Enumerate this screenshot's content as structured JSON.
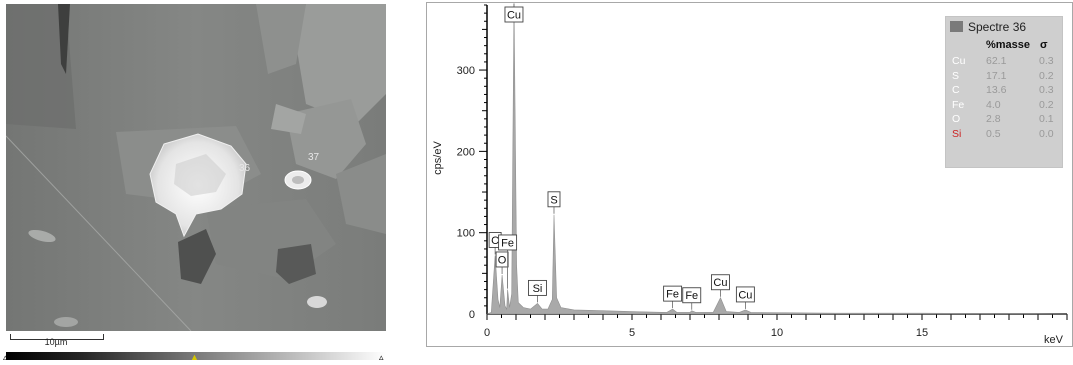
{
  "micrograph": {
    "spot_labels": [
      "36",
      "37"
    ],
    "scale_bar": "10µm"
  },
  "chart_data": {
    "type": "line",
    "xlabel": "keV",
    "ylabel": "cps/eV",
    "xlim": [
      0,
      20
    ],
    "ylim": [
      0,
      380
    ],
    "x_ticks": [
      0,
      5,
      10,
      15
    ],
    "y_ticks": [
      0,
      100,
      200,
      300
    ],
    "fill_color": "#a9a9a9",
    "spectrum": [
      [
        0.0,
        0
      ],
      [
        0.15,
        2
      ],
      [
        0.28,
        72
      ],
      [
        0.38,
        18
      ],
      [
        0.44,
        8
      ],
      [
        0.52,
        48
      ],
      [
        0.62,
        10
      ],
      [
        0.68,
        6
      ],
      [
        0.71,
        30
      ],
      [
        0.78,
        8
      ],
      [
        0.85,
        25
      ],
      [
        0.93,
        385
      ],
      [
        1.02,
        60
      ],
      [
        1.08,
        14
      ],
      [
        1.25,
        8
      ],
      [
        1.5,
        6
      ],
      [
        1.74,
        13
      ],
      [
        1.9,
        6
      ],
      [
        2.1,
        6
      ],
      [
        2.25,
        18
      ],
      [
        2.31,
        122
      ],
      [
        2.4,
        20
      ],
      [
        2.55,
        8
      ],
      [
        3.0,
        5
      ],
      [
        4.0,
        4
      ],
      [
        5.0,
        3
      ],
      [
        6.2,
        2
      ],
      [
        6.4,
        6
      ],
      [
        6.55,
        2
      ],
      [
        7.0,
        2
      ],
      [
        7.06,
        4
      ],
      [
        7.2,
        2
      ],
      [
        7.8,
        2
      ],
      [
        8.05,
        20
      ],
      [
        8.25,
        3
      ],
      [
        8.7,
        2
      ],
      [
        8.91,
        5
      ],
      [
        9.1,
        2
      ],
      [
        12.0,
        1
      ],
      [
        15.0,
        1
      ],
      [
        20.0,
        0
      ]
    ],
    "peak_labels": [
      {
        "label": "Cu",
        "x": 0.93,
        "y": 385
      },
      {
        "label": "S",
        "x": 2.31,
        "y": 122
      },
      {
        "label": "C",
        "x": 0.28,
        "y": 72
      },
      {
        "label": "O",
        "x": 0.52,
        "y": 48
      },
      {
        "label": "Fe",
        "x": 0.71,
        "y": 30
      },
      {
        "label": "Si",
        "x": 1.74,
        "y": 13
      },
      {
        "label": "Fe",
        "x": 6.4,
        "y": 6
      },
      {
        "label": "Fe",
        "x": 7.06,
        "y": 4
      },
      {
        "label": "Cu",
        "x": 8.05,
        "y": 20
      },
      {
        "label": "Cu",
        "x": 8.91,
        "y": 5
      }
    ],
    "legend": {
      "title": "Spectre 36",
      "col_mass": "%masse",
      "col_sigma": "σ",
      "rows": [
        {
          "el": "Cu",
          "mass": "62.1",
          "sigma": "0.3",
          "color": "#ffffff"
        },
        {
          "el": "S",
          "mass": "17.1",
          "sigma": "0.2",
          "color": "#ffffff"
        },
        {
          "el": "C",
          "mass": "13.6",
          "sigma": "0.3",
          "color": "#ffffff"
        },
        {
          "el": "Fe",
          "mass": "4.0",
          "sigma": "0.2",
          "color": "#ffffff"
        },
        {
          "el": "O",
          "mass": "2.8",
          "sigma": "0.1",
          "color": "#ffffff"
        },
        {
          "el": "Si",
          "mass": "0.5",
          "sigma": "0.0",
          "color": "#cc2222"
        }
      ]
    }
  }
}
